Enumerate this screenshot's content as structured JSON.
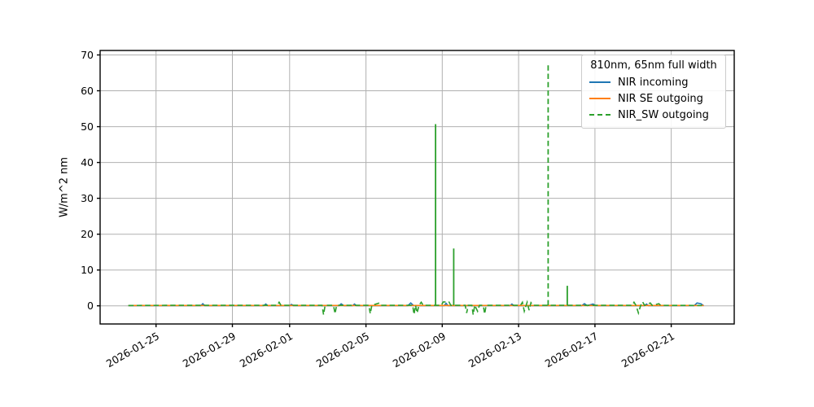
{
  "colors": {
    "grid": "#b0b0b0",
    "spine": "#000000",
    "background": "#ffffff",
    "blue": "#1f77b4",
    "orange": "#ff7f0e",
    "green": "#2ca02c"
  },
  "chart_data": {
    "type": "line",
    "title": "",
    "xlabel": "",
    "ylabel": "W/m^2 nm",
    "grid": true,
    "x_unit": "days since 2026-01-25",
    "xlim": [
      -2.93,
      30.3
    ],
    "ylim": [
      -5.06,
      71.25
    ],
    "yticks": [
      0,
      10,
      20,
      30,
      40,
      50,
      60,
      70
    ],
    "xticks": [
      {
        "t": 0,
        "label": "2026-01-25"
      },
      {
        "t": 4,
        "label": "2026-01-29"
      },
      {
        "t": 7,
        "label": "2026-02-01"
      },
      {
        "t": 11,
        "label": "2026-02-05"
      },
      {
        "t": 15,
        "label": "2026-02-09"
      },
      {
        "t": 19,
        "label": "2026-02-13"
      },
      {
        "t": 23,
        "label": "2026-02-17"
      },
      {
        "t": 27,
        "label": "2026-02-21"
      }
    ],
    "legend": {
      "title": "810nm, 65nm full width",
      "position": "upper right"
    },
    "series": [
      {
        "name": "NIR incoming",
        "color": "#1f77b4",
        "style": "solid",
        "points": [
          [
            -1.45,
            0.05
          ],
          [
            2.35,
            0.05
          ],
          [
            2.45,
            0.6
          ],
          [
            2.55,
            0.05
          ],
          [
            5.65,
            0.05
          ],
          [
            5.75,
            0.5
          ],
          [
            5.85,
            0.05
          ],
          [
            7.0,
            0.05
          ],
          [
            7.1,
            0.4
          ],
          [
            7.2,
            0.05
          ],
          [
            9.6,
            0.05
          ],
          [
            9.7,
            0.55
          ],
          [
            9.85,
            0.05
          ],
          [
            10.3,
            0.05
          ],
          [
            10.4,
            0.5
          ],
          [
            10.5,
            0.05
          ],
          [
            13.2,
            0.05
          ],
          [
            13.35,
            0.8
          ],
          [
            13.5,
            0.05
          ],
          [
            15.1,
            0.05
          ],
          [
            15.2,
            0.7
          ],
          [
            15.3,
            0.05
          ],
          [
            18.55,
            0.05
          ],
          [
            18.65,
            0.5
          ],
          [
            18.75,
            0.05
          ],
          [
            22.3,
            0.05
          ],
          [
            22.45,
            0.6
          ],
          [
            22.6,
            0.05
          ],
          [
            22.9,
            0.5
          ],
          [
            23.05,
            0.05
          ],
          [
            25.6,
            0.05
          ],
          [
            25.7,
            0.5
          ],
          [
            25.8,
            0.05
          ],
          [
            28.2,
            0.05
          ],
          [
            28.35,
            0.8
          ],
          [
            28.55,
            0.6
          ],
          [
            28.7,
            0.05
          ]
        ]
      },
      {
        "name": "NIR SE outgoing",
        "color": "#ff7f0e",
        "style": "solid",
        "points": [
          [
            -1.45,
            0.1
          ],
          [
            28.7,
            0.1
          ]
        ]
      },
      {
        "name": "NIR_SW outgoing",
        "color": "#2ca02c",
        "style": "dashed",
        "points": [
          [
            -1.45,
            0.1
          ],
          [
            0.5,
            0.15
          ],
          [
            4.0,
            0.15
          ],
          [
            6.35,
            0.15
          ],
          [
            6.45,
            1.0
          ],
          [
            6.55,
            0.15
          ],
          [
            8.7,
            0.15
          ],
          [
            8.78,
            -2.5
          ],
          [
            8.86,
            0.15
          ],
          [
            9.3,
            0.15
          ],
          [
            9.38,
            -2.2
          ],
          [
            9.46,
            0.15
          ],
          [
            11.15,
            0.15
          ],
          [
            11.23,
            -2.2
          ],
          [
            11.31,
            0.15
          ],
          [
            11.7,
            0.8
          ],
          [
            11.8,
            0.15
          ],
          [
            13.45,
            0.15
          ],
          [
            13.52,
            -2.4
          ],
          [
            13.6,
            0.15
          ],
          [
            13.68,
            -2.0
          ],
          [
            13.78,
            0.15
          ],
          [
            13.9,
            1.0
          ],
          [
            14.0,
            0.15
          ],
          [
            14.95,
            0.15
          ],
          [
            15.05,
            1.1
          ],
          [
            15.35,
            1.1
          ],
          [
            15.45,
            0.15
          ],
          [
            16.2,
            0.15
          ],
          [
            16.28,
            -2.0
          ],
          [
            16.36,
            0.15
          ],
          [
            16.55,
            0.15
          ],
          [
            16.62,
            -2.5
          ],
          [
            16.7,
            0.15
          ],
          [
            16.85,
            -1.5
          ],
          [
            16.95,
            0.15
          ],
          [
            17.15,
            0.15
          ],
          [
            17.22,
            -2.3
          ],
          [
            17.3,
            0.15
          ],
          [
            19.1,
            0.15
          ],
          [
            19.2,
            1.0
          ],
          [
            19.3,
            -1.5
          ],
          [
            19.45,
            1.0
          ],
          [
            19.55,
            -1.2
          ],
          [
            19.65,
            0.9
          ],
          [
            19.75,
            0.15
          ],
          [
            24.95,
            0.15
          ],
          [
            25.05,
            1.0
          ],
          [
            25.15,
            0.15
          ],
          [
            25.28,
            -2.0
          ],
          [
            25.4,
            0.15
          ],
          [
            25.5,
            1.1
          ],
          [
            25.6,
            0.15
          ],
          [
            25.9,
            0.8
          ],
          [
            26.0,
            0.15
          ],
          [
            26.35,
            0.6
          ],
          [
            26.45,
            0.15
          ],
          [
            28.6,
            0.1
          ]
        ],
        "spikes": [
          {
            "t": 14.65,
            "v": 50.7,
            "dash": false
          },
          {
            "t": 15.6,
            "v": 16.0,
            "dash": false
          },
          {
            "t": 20.55,
            "v": 67.9,
            "dash": true
          },
          {
            "t": 21.55,
            "v": 5.6,
            "dash": false
          }
        ]
      }
    ]
  }
}
